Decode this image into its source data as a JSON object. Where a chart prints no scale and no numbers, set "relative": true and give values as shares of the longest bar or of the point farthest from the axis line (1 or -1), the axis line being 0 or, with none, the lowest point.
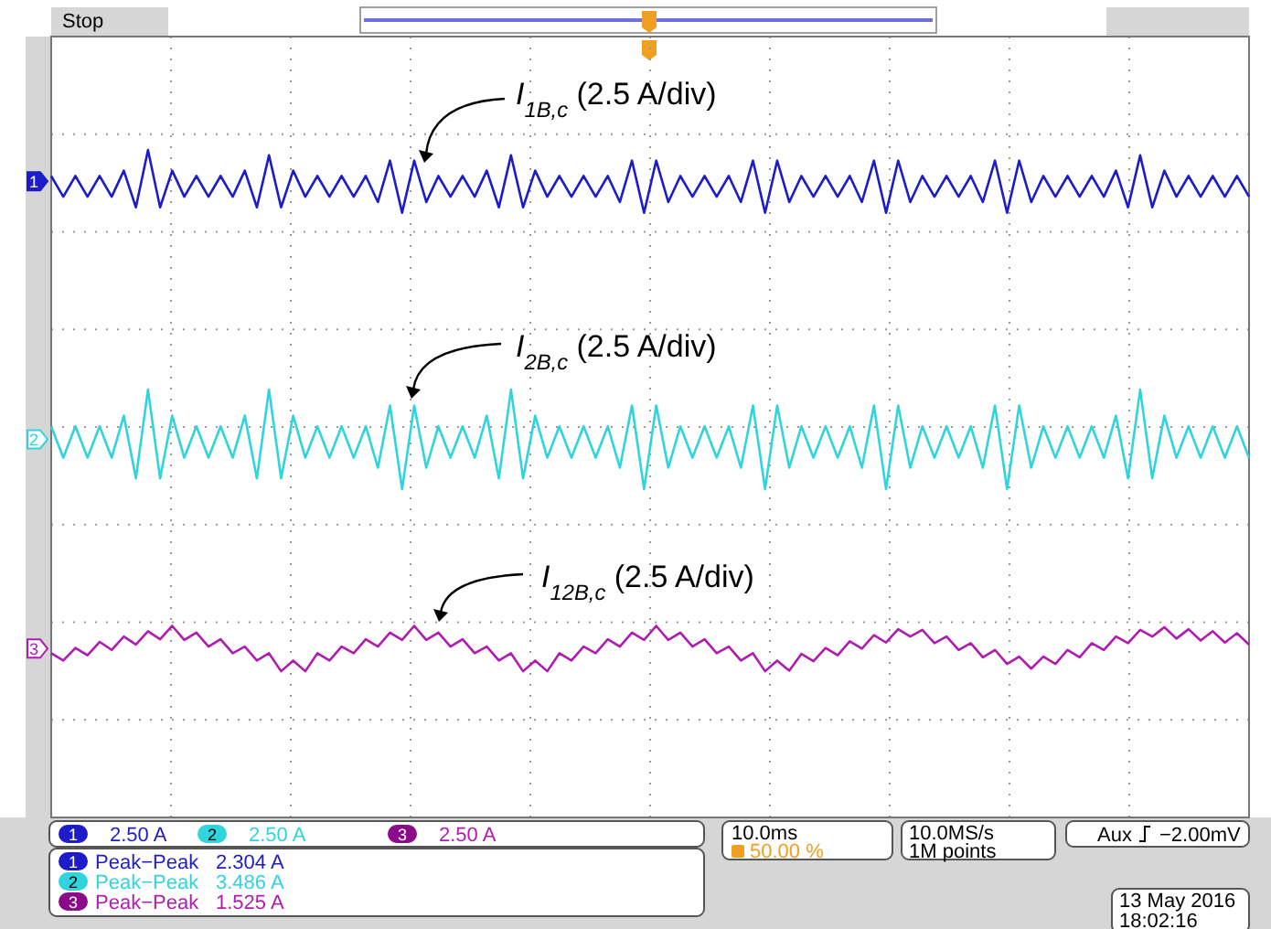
{
  "chart_data": {
    "type": "line",
    "relative": true,
    "grid": true,
    "categories": [
      null,
      null,
      null,
      null,
      null,
      null,
      null,
      null,
      null,
      null,
      null,
      null,
      null,
      null,
      null,
      null,
      null,
      null,
      null,
      null,
      null,
      null,
      null,
      null,
      null,
      null,
      null,
      null,
      null,
      null,
      null,
      null,
      null,
      null,
      null,
      null,
      null,
      null,
      null,
      null,
      null,
      null,
      null,
      null,
      null,
      null,
      null,
      null,
      null,
      null,
      null,
      null,
      null,
      null,
      null,
      null,
      null,
      null,
      null,
      null,
      null,
      null,
      null,
      null,
      null,
      null,
      null,
      null,
      null,
      null,
      null,
      null,
      null,
      null,
      null,
      null,
      null,
      null,
      null,
      null,
      null,
      null,
      null,
      null,
      null,
      null,
      null,
      null,
      null,
      null,
      null,
      null,
      null,
      null,
      null,
      null,
      null,
      null,
      null,
      null
    ],
    "series": [
      {
        "name": "I$_{1B,c}$ (2.5 A/div)",
        "color": "#1c1cc8",
        "values": [
          0.961,
          0.93,
          0.961,
          0.93,
          0.961,
          0.93,
          0.969,
          0.914,
          1,
          0.914,
          0.969,
          0.93,
          0.961,
          0.93,
          0.961,
          0.93,
          0.969,
          0.914,
          0.992,
          0.914,
          0.969,
          0.93,
          0.961,
          0.93,
          0.961,
          0.93,
          0.961,
          0.922,
          0.984,
          0.906,
          0.984,
          0.922,
          0.961,
          0.93,
          0.961,
          0.93,
          0.969,
          0.914,
          0.992,
          0.914,
          0.969,
          0.93,
          0.961,
          0.93,
          0.961,
          0.93,
          0.961,
          0.922,
          0.984,
          0.906,
          0.984,
          0.922,
          0.961,
          0.93,
          0.961,
          0.93,
          0.961,
          0.922,
          0.984,
          0.906,
          0.984,
          0.922,
          0.961,
          0.93,
          0.961,
          0.93,
          0.961,
          0.922,
          0.984,
          0.906,
          0.984,
          0.922,
          0.961,
          0.93,
          0.961,
          0.93,
          0.961,
          0.922,
          0.984,
          0.906,
          0.984,
          0.922,
          0.961,
          0.93,
          0.961,
          0.93,
          0.961,
          0.93,
          0.969,
          0.914,
          0.992,
          0.914,
          0.969,
          0.93,
          0.961,
          0.93,
          0.961,
          0.93,
          0.961,
          0.93
        ]
      },
      {
        "name": "I$_{2B,c}$ (2.5 A/div)",
        "color": "#30d4dc",
        "values": [
          0.586,
          0.539,
          0.586,
          0.539,
          0.586,
          0.539,
          0.602,
          0.508,
          0.641,
          0.508,
          0.602,
          0.539,
          0.586,
          0.539,
          0.586,
          0.539,
          0.602,
          0.508,
          0.641,
          0.508,
          0.602,
          0.539,
          0.586,
          0.539,
          0.586,
          0.539,
          0.586,
          0.524,
          0.617,
          0.492,
          0.617,
          0.524,
          0.586,
          0.539,
          0.586,
          0.539,
          0.602,
          0.508,
          0.641,
          0.508,
          0.602,
          0.539,
          0.586,
          0.539,
          0.586,
          0.539,
          0.586,
          0.524,
          0.617,
          0.492,
          0.617,
          0.524,
          0.586,
          0.539,
          0.586,
          0.539,
          0.586,
          0.524,
          0.617,
          0.492,
          0.617,
          0.524,
          0.586,
          0.539,
          0.586,
          0.539,
          0.586,
          0.524,
          0.617,
          0.492,
          0.617,
          0.524,
          0.586,
          0.539,
          0.586,
          0.539,
          0.586,
          0.524,
          0.617,
          0.492,
          0.617,
          0.524,
          0.586,
          0.539,
          0.586,
          0.539,
          0.586,
          0.539,
          0.602,
          0.508,
          0.641,
          0.508,
          0.602,
          0.539,
          0.586,
          0.539,
          0.586,
          0.539,
          0.586,
          0.539
        ]
      },
      {
        "name": "I$_{12B,c}$ (2.5 A/div)",
        "color": "#b01cb0",
        "values": [
          0.246,
          0.235,
          0.254,
          0.243,
          0.263,
          0.251,
          0.271,
          0.259,
          0.279,
          0.267,
          0.287,
          0.266,
          0.277,
          0.256,
          0.267,
          0.246,
          0.256,
          0.235,
          0.246,
          0.219,
          0.235,
          0.219,
          0.246,
          0.235,
          0.256,
          0.246,
          0.267,
          0.256,
          0.277,
          0.266,
          0.287,
          0.266,
          0.277,
          0.256,
          0.267,
          0.246,
          0.256,
          0.235,
          0.246,
          0.219,
          0.235,
          0.219,
          0.246,
          0.235,
          0.256,
          0.246,
          0.267,
          0.256,
          0.277,
          0.266,
          0.287,
          0.266,
          0.277,
          0.256,
          0.267,
          0.246,
          0.256,
          0.235,
          0.246,
          0.219,
          0.235,
          0.22,
          0.245,
          0.234,
          0.254,
          0.243,
          0.264,
          0.253,
          0.273,
          0.262,
          0.282,
          0.271,
          0.281,
          0.261,
          0.271,
          0.251,
          0.261,
          0.24,
          0.251,
          0.23,
          0.241,
          0.223,
          0.241,
          0.23,
          0.251,
          0.24,
          0.261,
          0.251,
          0.271,
          0.261,
          0.281,
          0.271,
          0.285,
          0.268,
          0.282,
          0.265,
          0.279,
          0.262,
          0.276,
          0.259
        ]
      }
    ],
    "annotations": [
      "Stop",
      "1",
      "2.50 A",
      "Peak−Peak",
      "2.304 A",
      "2",
      "2.50 A",
      "Peak−Peak",
      "3.486 A",
      "3",
      "2.50 A",
      "Peak−Peak",
      "1.525 A",
      "10.0ms",
      "50.00 %",
      "10.0MS/s",
      "1M points",
      "Aux",
      "−2.00mV",
      "13 May 2016",
      "18:02:16"
    ]
  }
}
